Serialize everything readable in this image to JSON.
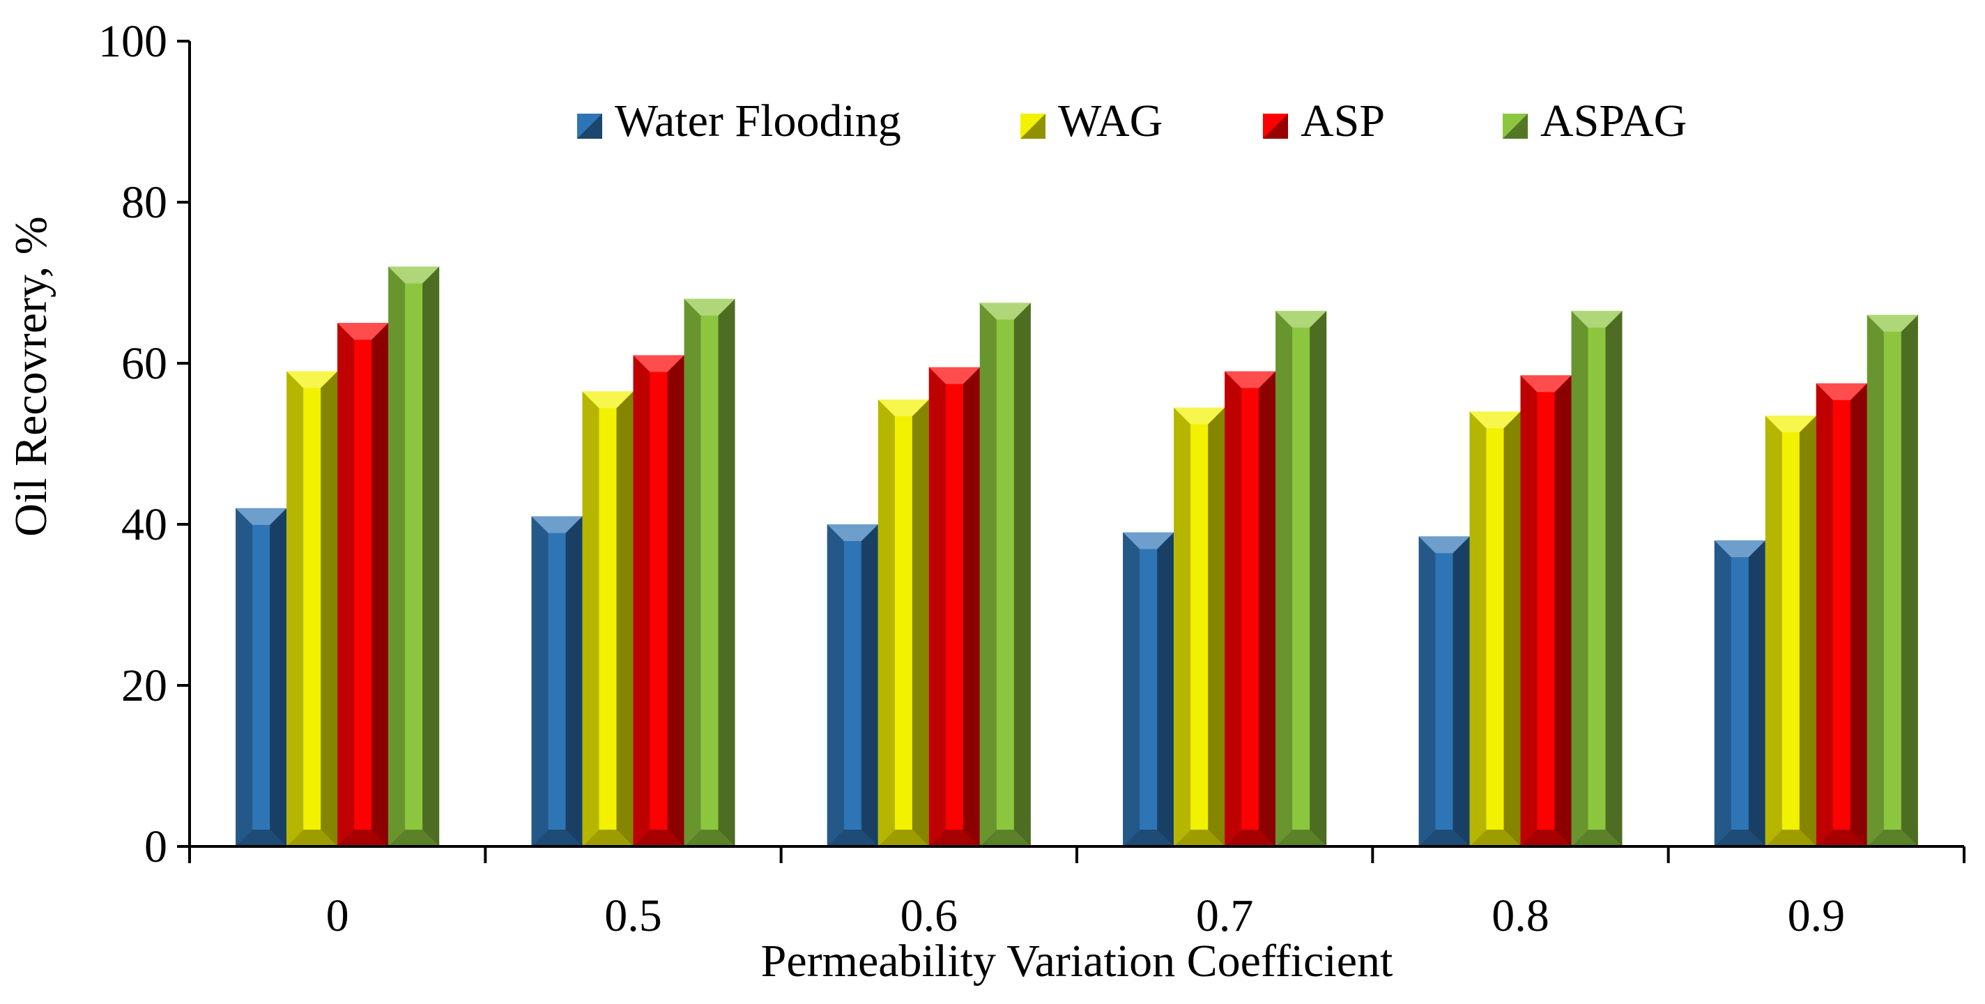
{
  "chart_data": {
    "type": "bar",
    "title": "",
    "xlabel": "Permeability Variation Coefficient",
    "ylabel": "Oil Recovrery, %",
    "categories": [
      "0",
      "0.5",
      "0.6",
      "0.7",
      "0.8",
      "0.9"
    ],
    "ylim": [
      0,
      100
    ],
    "yticks": [
      "0",
      "20",
      "40",
      "60",
      "80",
      "100"
    ],
    "grid": false,
    "legend_position": "top-center",
    "series": [
      {
        "name": "Water Flooding",
        "values": [
          42,
          41,
          40,
          39,
          38.5,
          38
        ],
        "color": "#2E75B6"
      },
      {
        "name": "WAG",
        "values": [
          59,
          56.5,
          55.5,
          54.5,
          54,
          53.5
        ],
        "color": "#F2F200"
      },
      {
        "name": "ASP",
        "values": [
          65,
          61,
          59.5,
          59,
          58.5,
          57.5
        ],
        "color": "#FF0000"
      },
      {
        "name": "ASPAG",
        "values": [
          72,
          68,
          67.5,
          66.5,
          66.5,
          66
        ],
        "color": "#8CC63F"
      }
    ]
  }
}
